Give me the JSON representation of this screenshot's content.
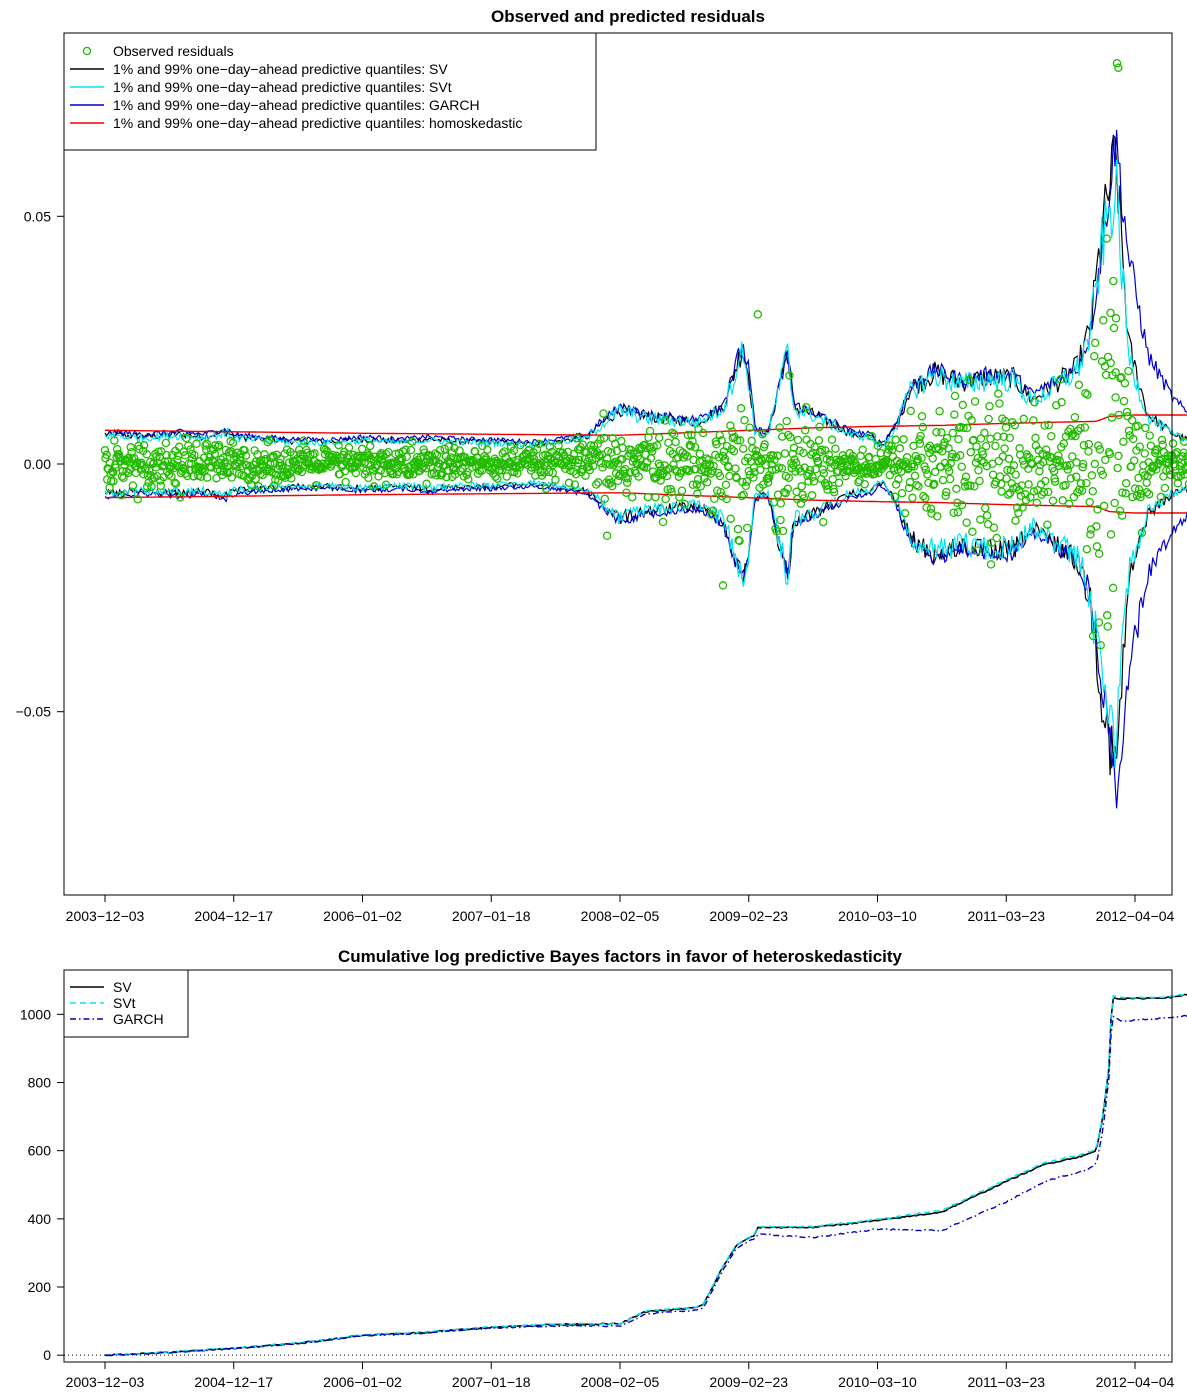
{
  "colors": {
    "observed": "#22bb00",
    "sv": "#000000",
    "svt": "#00e5ee",
    "garch": "#0000cc",
    "homo": "#ee0000"
  },
  "chart_data": [
    {
      "type": "line",
      "title": "Observed and predicted residuals",
      "xlabel": "",
      "ylabel": "",
      "x_tick_labels": [
        "2003−12−03",
        "2004−12−17",
        "2006−01−02",
        "2007−01−18",
        "2008−02−05",
        "2009−02−23",
        "2010−03−10",
        "2011−03−23",
        "2012−04−04"
      ],
      "y_ticks": [
        -0.05,
        0.0,
        0.05
      ],
      "y_tick_labels": [
        "−0.05",
        "0.00",
        "0.05"
      ],
      "ylim": [
        -0.087,
        0.087
      ],
      "legend": {
        "position": "top-left",
        "entries": [
          {
            "key": "observed",
            "label": "Observed residuals",
            "style": "circle"
          },
          {
            "key": "sv",
            "label": "1% and 99% one−day−ahead predictive quantiles: SV",
            "style": "line"
          },
          {
            "key": "svt",
            "label": "1% and 99% one−day−ahead predictive quantiles: SVt",
            "style": "line"
          },
          {
            "key": "garch",
            "label": "1% and 99% one−day−ahead predictive quantiles: GARCH",
            "style": "line"
          },
          {
            "key": "homo",
            "label": "1% and 99% one−day−ahead predictive quantiles: homoskedastic",
            "style": "line"
          }
        ]
      },
      "quantile_band_99": {
        "x_index": [
          0,
          0.3,
          0.6,
          0.75,
          0.85,
          0.95,
          1.0,
          1.2,
          1.5,
          1.8,
          2.0,
          2.3,
          2.5,
          2.8,
          3.0,
          3.3,
          3.5,
          3.75,
          3.85,
          4.0,
          4.2,
          4.4,
          4.6,
          4.8,
          4.95,
          5.0,
          5.05,
          5.15,
          5.3,
          5.35,
          5.5,
          5.7,
          5.8,
          5.95,
          6.0,
          6.05,
          6.15,
          6.25,
          6.45,
          6.65,
          6.85,
          7.05,
          7.2,
          7.4,
          7.55,
          7.65,
          7.75,
          7.85,
          7.95,
          8.1,
          8.3,
          8.5,
          8.7,
          8.85,
          8.9
        ],
        "sv": [
          0.006,
          0.0055,
          0.006,
          0.0055,
          0.006,
          0.0065,
          0.0055,
          0.005,
          0.0045,
          0.0045,
          0.005,
          0.0045,
          0.005,
          0.0045,
          0.0045,
          0.004,
          0.0045,
          0.0055,
          0.008,
          0.011,
          0.0095,
          0.009,
          0.0085,
          0.0115,
          0.0235,
          0.018,
          0.0065,
          0.006,
          0.0235,
          0.0115,
          0.01,
          0.0075,
          0.006,
          0.0055,
          0.004,
          0.004,
          0.008,
          0.015,
          0.0185,
          0.0165,
          0.0175,
          0.0175,
          0.013,
          0.0165,
          0.0195,
          0.027,
          0.048,
          0.063,
          0.024,
          0.01,
          0.006,
          0.004,
          0.003,
          0.0025,
          0.0025
        ],
        "garch": [
          0.0065,
          0.006,
          0.0065,
          0.006,
          0.0065,
          0.007,
          0.006,
          0.0055,
          0.005,
          0.005,
          0.0055,
          0.005,
          0.0055,
          0.005,
          0.005,
          0.0045,
          0.005,
          0.006,
          0.0085,
          0.0115,
          0.01,
          0.0095,
          0.009,
          0.012,
          0.024,
          0.019,
          0.007,
          0.0065,
          0.022,
          0.012,
          0.0105,
          0.008,
          0.0065,
          0.006,
          0.0045,
          0.0045,
          0.0085,
          0.0155,
          0.019,
          0.017,
          0.018,
          0.018,
          0.014,
          0.017,
          0.019,
          0.026,
          0.045,
          0.066,
          0.042,
          0.022,
          0.013,
          0.008,
          0.0055,
          0.0045,
          0.004
        ],
        "svt": [
          0.0058,
          0.0053,
          0.0058,
          0.0053,
          0.0058,
          0.0063,
          0.0053,
          0.0048,
          0.0043,
          0.0043,
          0.0048,
          0.0043,
          0.0048,
          0.0043,
          0.0043,
          0.0038,
          0.0043,
          0.0053,
          0.0078,
          0.0108,
          0.0093,
          0.0088,
          0.0083,
          0.0112,
          0.0225,
          0.0172,
          0.0063,
          0.0058,
          0.0225,
          0.0112,
          0.0098,
          0.0073,
          0.0058,
          0.0053,
          0.0038,
          0.0038,
          0.0078,
          0.0145,
          0.018,
          0.016,
          0.017,
          0.017,
          0.0125,
          0.016,
          0.019,
          0.026,
          0.045,
          0.056,
          0.022,
          0.0095,
          0.0058,
          0.0038,
          0.0028,
          0.0023,
          0.0023
        ]
      },
      "homoskedastic_99": {
        "x_index": [
          0,
          1,
          2,
          3,
          4,
          4.5,
          5,
          5.5,
          6,
          6.5,
          7,
          7.5,
          7.7,
          7.8,
          8,
          8.5,
          8.9
        ],
        "values": [
          0.0068,
          0.0065,
          0.0062,
          0.006,
          0.0058,
          0.0063,
          0.0068,
          0.0073,
          0.0076,
          0.0078,
          0.0082,
          0.0085,
          0.0086,
          0.0096,
          0.0099,
          0.0099,
          0.0098
        ]
      },
      "observed_highlights": [
        {
          "x": 7.87,
          "y": 0.08
        },
        {
          "x": 7.78,
          "y": 0.0455
        },
        {
          "x": 5.07,
          "y": 0.0302
        },
        {
          "x": 7.81,
          "y": 0.0305
        },
        {
          "x": 7.85,
          "y": 0.0185
        },
        {
          "x": 7.72,
          "y": -0.032
        },
        {
          "x": 7.83,
          "y": -0.025
        },
        {
          "x": 4.8,
          "y": -0.0245
        },
        {
          "x": 3.9,
          "y": -0.0145
        }
      ]
    },
    {
      "type": "line",
      "title": "Cumulative log predictive Bayes factors in favor of heteroskedasticity",
      "xlabel": "",
      "ylabel": "",
      "x_tick_labels": [
        "2003−12−03",
        "2004−12−17",
        "2006−01−02",
        "2007−01−18",
        "2008−02−05",
        "2009−02−23",
        "2010−03−10",
        "2011−03−23",
        "2012−04−04"
      ],
      "y_ticks": [
        0,
        200,
        400,
        600,
        800,
        1000
      ],
      "y_tick_labels": [
        "0",
        "200",
        "400",
        "600",
        "800",
        "1000"
      ],
      "ylim": [
        -20,
        1130
      ],
      "reference_line": 0,
      "legend": {
        "position": "top-left",
        "entries": [
          {
            "key": "sv",
            "label": "SV",
            "style": "solid"
          },
          {
            "key": "svt",
            "label": "SVt",
            "style": "dashed"
          },
          {
            "key": "garch",
            "label": "GARCH",
            "style": "dotdash"
          }
        ]
      },
      "x_index": [
        0,
        0.5,
        1.0,
        1.5,
        2.0,
        2.5,
        3.0,
        3.5,
        4.0,
        4.2,
        4.4,
        4.6,
        4.65,
        4.8,
        4.9,
        5.0,
        5.05,
        5.06,
        5.5,
        6.0,
        6.5,
        7.0,
        7.3,
        7.6,
        7.7,
        7.75,
        7.8,
        7.82,
        7.9,
        8.3,
        8.9
      ],
      "series": [
        {
          "key": "sv",
          "name": "SV",
          "values": [
            0,
            8,
            20,
            35,
            58,
            67,
            82,
            90,
            92,
            128,
            133,
            140,
            150,
            260,
            320,
            345,
            348,
            375,
            375,
            395,
            420,
            510,
            560,
            585,
            600,
            700,
            850,
            1050,
            1045,
            1050,
            1100
          ]
        },
        {
          "key": "svt",
          "name": "SVt",
          "values": [
            0,
            9,
            21,
            36,
            59,
            68,
            83,
            91,
            93,
            130,
            135,
            142,
            152,
            262,
            322,
            347,
            350,
            377,
            377,
            398,
            425,
            515,
            565,
            590,
            605,
            705,
            855,
            1055,
            1048,
            1052,
            1105
          ]
        },
        {
          "key": "garch",
          "name": "GARCH",
          "values": [
            0,
            8,
            20,
            34,
            57,
            65,
            80,
            86,
            86,
            120,
            127,
            132,
            140,
            250,
            310,
            335,
            340,
            355,
            345,
            370,
            365,
            450,
            510,
            540,
            560,
            660,
            820,
            995,
            980,
            990,
            1025
          ]
        }
      ]
    }
  ]
}
